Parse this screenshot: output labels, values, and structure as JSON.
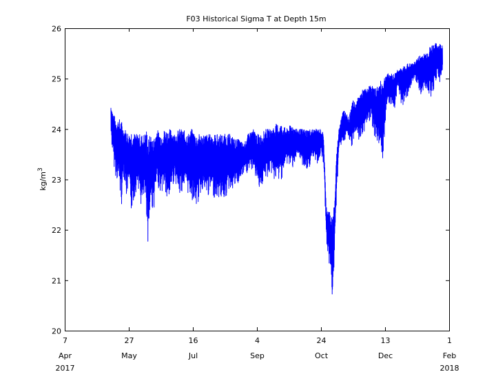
{
  "chart_data": {
    "type": "line",
    "title": "F03 Historical Sigma T at Depth 15m",
    "ylabel": "kg/m",
    "ylabel_superscript": "3",
    "xlabel": "",
    "grid": false,
    "legend": "none",
    "ylim": [
      20,
      26
    ],
    "xlim": [
      "2017-04-07",
      "2018-02-01"
    ],
    "y_ticks": [
      20,
      21,
      22,
      23,
      24,
      25,
      26
    ],
    "x_ticks": [
      {
        "date": "2017-04-07",
        "day": "7",
        "month": "Apr",
        "year": "2017"
      },
      {
        "date": "2017-05-27",
        "day": "27",
        "month": "May",
        "year": ""
      },
      {
        "date": "2017-07-16",
        "day": "16",
        "month": "Jul",
        "year": ""
      },
      {
        "date": "2017-09-04",
        "day": "4",
        "month": "Sep",
        "year": ""
      },
      {
        "date": "2017-10-24",
        "day": "24",
        "month": "Oct",
        "year": ""
      },
      {
        "date": "2017-12-13",
        "day": "13",
        "month": "Dec",
        "year": ""
      },
      {
        "date": "2018-02-01",
        "day": "1",
        "month": "Feb",
        "year": "2018"
      }
    ],
    "series": [
      {
        "color": "#0000ff",
        "points": [
          [
            "2017-05-13",
            23.8,
            24.5
          ],
          [
            "2017-05-15",
            23.3,
            24.3
          ],
          [
            "2017-05-17",
            23.0,
            24.2
          ],
          [
            "2017-05-19",
            22.9,
            24.2
          ],
          [
            "2017-05-21",
            22.4,
            24.2
          ],
          [
            "2017-05-23",
            23.1,
            24.0
          ],
          [
            "2017-05-25",
            22.6,
            24.0
          ],
          [
            "2017-05-27",
            22.8,
            23.9
          ],
          [
            "2017-05-29",
            22.3,
            24.0
          ],
          [
            "2017-06-01",
            22.7,
            23.9
          ],
          [
            "2017-06-03",
            22.9,
            23.9
          ],
          [
            "2017-06-06",
            22.3,
            23.9
          ],
          [
            "2017-06-08",
            22.6,
            23.9
          ],
          [
            "2017-06-10",
            22.2,
            24.0
          ],
          [
            "2017-06-11",
            21.6,
            23.8
          ],
          [
            "2017-06-13",
            22.5,
            23.9
          ],
          [
            "2017-06-15",
            22.3,
            23.8
          ],
          [
            "2017-06-18",
            22.9,
            24.0
          ],
          [
            "2017-06-21",
            22.7,
            23.9
          ],
          [
            "2017-06-24",
            22.8,
            24.0
          ],
          [
            "2017-06-26",
            22.3,
            24.0
          ],
          [
            "2017-06-29",
            22.8,
            24.0
          ],
          [
            "2017-07-02",
            23.0,
            23.9
          ],
          [
            "2017-07-05",
            22.6,
            24.0
          ],
          [
            "2017-07-08",
            22.8,
            24.0
          ],
          [
            "2017-07-12",
            22.7,
            23.9
          ],
          [
            "2017-07-15",
            22.6,
            24.0
          ],
          [
            "2017-07-19",
            22.4,
            23.9
          ],
          [
            "2017-07-23",
            22.8,
            23.9
          ],
          [
            "2017-07-26",
            22.6,
            23.9
          ],
          [
            "2017-07-30",
            22.7,
            23.9
          ],
          [
            "2017-08-03",
            22.6,
            23.9
          ],
          [
            "2017-08-07",
            22.6,
            23.9
          ],
          [
            "2017-08-10",
            22.6,
            23.9
          ],
          [
            "2017-08-14",
            22.8,
            23.9
          ],
          [
            "2017-08-18",
            22.8,
            23.8
          ],
          [
            "2017-08-21",
            22.9,
            23.8
          ],
          [
            "2017-08-25",
            23.1,
            23.7
          ],
          [
            "2017-08-28",
            23.1,
            23.9
          ],
          [
            "2017-09-01",
            23.2,
            24.0
          ],
          [
            "2017-09-04",
            22.9,
            23.9
          ],
          [
            "2017-09-07",
            22.8,
            23.9
          ],
          [
            "2017-09-11",
            23.0,
            24.0
          ],
          [
            "2017-09-15",
            23.1,
            24.0
          ],
          [
            "2017-09-19",
            22.9,
            24.1
          ],
          [
            "2017-09-23",
            23.0,
            24.1
          ],
          [
            "2017-09-27",
            23.3,
            24.0
          ],
          [
            "2017-10-01",
            23.2,
            24.1
          ],
          [
            "2017-10-05",
            23.4,
            24.0
          ],
          [
            "2017-10-09",
            23.3,
            24.0
          ],
          [
            "2017-10-13",
            23.1,
            24.0
          ],
          [
            "2017-10-17",
            23.4,
            24.0
          ],
          [
            "2017-10-21",
            23.3,
            24.0
          ],
          [
            "2017-10-24",
            23.5,
            24.0
          ],
          [
            "2017-10-26",
            23.3,
            23.9
          ],
          [
            "2017-10-28",
            21.8,
            22.5
          ],
          [
            "2017-10-30",
            21.3,
            22.4
          ],
          [
            "2017-11-01",
            21.0,
            22.3
          ],
          [
            "2017-11-02",
            20.4,
            22.2
          ],
          [
            "2017-11-03",
            21.0,
            22.5
          ],
          [
            "2017-11-04",
            22.0,
            22.7
          ],
          [
            "2017-11-05",
            22.6,
            23.5
          ],
          [
            "2017-11-07",
            23.6,
            24.0
          ],
          [
            "2017-11-09",
            23.7,
            24.3
          ],
          [
            "2017-11-11",
            23.7,
            24.4
          ],
          [
            "2017-11-13",
            23.9,
            24.3
          ],
          [
            "2017-11-15",
            23.7,
            24.2
          ],
          [
            "2017-11-17",
            23.6,
            24.6
          ],
          [
            "2017-11-20",
            23.9,
            24.5
          ],
          [
            "2017-11-23",
            23.7,
            24.7
          ],
          [
            "2017-11-26",
            23.9,
            24.8
          ],
          [
            "2017-11-29",
            24.1,
            24.8
          ],
          [
            "2017-12-02",
            24.2,
            24.9
          ],
          [
            "2017-12-05",
            23.8,
            24.8
          ],
          [
            "2017-12-08",
            23.7,
            24.9
          ],
          [
            "2017-12-11",
            23.3,
            25.0
          ],
          [
            "2017-12-14",
            24.5,
            25.1
          ],
          [
            "2017-12-17",
            24.5,
            25.1
          ],
          [
            "2017-12-20",
            24.3,
            25.1
          ],
          [
            "2017-12-23",
            24.9,
            25.2
          ],
          [
            "2017-12-26",
            24.4,
            25.2
          ],
          [
            "2017-12-29",
            24.6,
            25.3
          ],
          [
            "2018-01-01",
            24.7,
            25.3
          ],
          [
            "2018-01-04",
            25.0,
            25.3
          ],
          [
            "2018-01-07",
            24.9,
            25.4
          ],
          [
            "2018-01-10",
            24.6,
            25.5
          ],
          [
            "2018-01-13",
            24.8,
            25.5
          ],
          [
            "2018-01-16",
            24.7,
            25.6
          ],
          [
            "2018-01-19",
            24.6,
            25.7
          ],
          [
            "2018-01-22",
            25.0,
            25.7
          ],
          [
            "2018-01-25",
            24.9,
            25.7
          ],
          [
            "2018-01-27",
            25.1,
            25.7
          ]
        ]
      }
    ]
  }
}
